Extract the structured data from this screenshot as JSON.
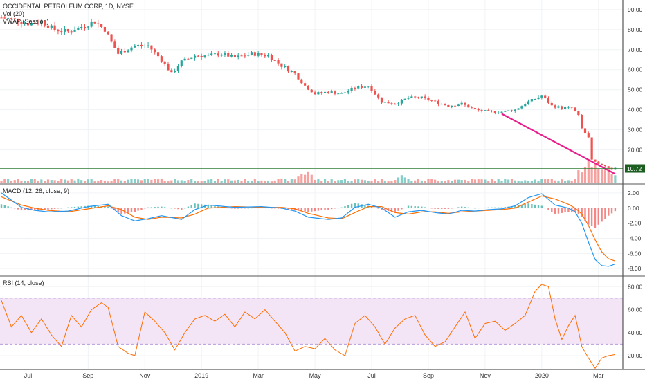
{
  "header": {
    "title": "OCCIDENTAL PETROLEUM CORP, 1D, NYSE",
    "vol_label": "Vol (20)",
    "vwap_label": "VWAP (Session)",
    "macd_label": "MACD (12, 26, close, 9)",
    "rsi_label": "RSI (14, close)",
    "last_price": "10.72"
  },
  "colors": {
    "up": "#26a69a",
    "down": "#ef5350",
    "macd_line": "#2196f3",
    "signal_line": "#ff6d00",
    "rsi_line": "#ff6d00",
    "rsi_band": "#f3e5f5",
    "trendline": "#e91e8c",
    "price_tag": "#1b5e20"
  },
  "chart_data": [
    {
      "type": "candlestick",
      "title": "OCCIDENTAL PETROLEUM CORP, 1D, NYSE",
      "x_ticks": [
        "Jul",
        "Sep",
        "Nov",
        "2019",
        "Mar",
        "May",
        "Jul",
        "Sep",
        "Nov",
        "2020",
        "Mar"
      ],
      "y_ticks": [
        90,
        80,
        70,
        60,
        50,
        40,
        30,
        20
      ],
      "ylim": [
        4,
        92
      ],
      "last_price": 10.72,
      "price_path": [
        [
          0,
          86
        ],
        [
          4,
          85
        ],
        [
          8,
          83
        ],
        [
          12,
          84
        ],
        [
          16,
          80
        ],
        [
          20,
          79
        ],
        [
          25,
          82
        ],
        [
          28,
          84
        ],
        [
          31,
          80
        ],
        [
          35,
          68
        ],
        [
          40,
          72
        ],
        [
          44,
          72
        ],
        [
          48,
          65
        ],
        [
          51,
          58
        ],
        [
          54,
          64
        ],
        [
          58,
          67
        ],
        [
          62,
          67
        ],
        [
          66,
          68
        ],
        [
          70,
          66
        ],
        [
          75,
          68
        ],
        [
          80,
          67
        ],
        [
          84,
          62
        ],
        [
          88,
          58
        ],
        [
          91,
          52
        ],
        [
          94,
          48
        ],
        [
          98,
          49
        ],
        [
          102,
          48
        ],
        [
          106,
          51
        ],
        [
          110,
          52
        ],
        [
          114,
          44
        ],
        [
          118,
          43
        ],
        [
          122,
          46
        ],
        [
          126,
          46
        ],
        [
          130,
          44
        ],
        [
          134,
          42
        ],
        [
          138,
          43
        ],
        [
          142,
          40
        ],
        [
          146,
          39
        ],
        [
          150,
          39
        ],
        [
          154,
          40
        ],
        [
          158,
          44
        ],
        [
          162,
          47
        ],
        [
          165,
          42
        ],
        [
          168,
          41
        ],
        [
          171,
          41
        ],
        [
          173,
          37
        ],
        [
          174,
          31
        ],
        [
          176,
          26
        ],
        [
          177,
          15
        ],
        [
          179,
          13
        ],
        [
          181,
          12
        ],
        [
          183,
          10.5
        ],
        [
          184,
          10.72
        ]
      ],
      "trendline": [
        [
          150,
          38
        ],
        [
          184,
          8
        ]
      ],
      "volume_peaks": [
        [
          176,
          0.9
        ],
        [
          178,
          0.75
        ],
        [
          180,
          0.55
        ],
        [
          182,
          0.45
        ],
        [
          90,
          0.35
        ],
        [
          92,
          0.45
        ],
        [
          120,
          0.3
        ]
      ]
    },
    {
      "type": "line",
      "title": "MACD (12, 26, close, 9)",
      "y_ticks": [
        2.0,
        0.0,
        -2.0,
        -4.0,
        -6.0,
        -8.0
      ],
      "ylim": [
        -8.9,
        3.0
      ],
      "series": [
        {
          "name": "MACD",
          "values": [
            [
              0,
              2.0
            ],
            [
              6,
              0.1
            ],
            [
              10,
              -0.3
            ],
            [
              14,
              -0.5
            ],
            [
              20,
              -0.4
            ],
            [
              26,
              0.2
            ],
            [
              32,
              0.5
            ],
            [
              36,
              -1.0
            ],
            [
              40,
              -1.7
            ],
            [
              44,
              -1.4
            ],
            [
              48,
              -1.0
            ],
            [
              54,
              -1.5
            ],
            [
              58,
              -0.2
            ],
            [
              62,
              0.4
            ],
            [
              70,
              0.1
            ],
            [
              78,
              0.2
            ],
            [
              84,
              0.0
            ],
            [
              88,
              -0.4
            ],
            [
              92,
              -1.2
            ],
            [
              98,
              -1.5
            ],
            [
              102,
              -1.3
            ],
            [
              106,
              0.1
            ],
            [
              110,
              0.5
            ],
            [
              114,
              0.0
            ],
            [
              118,
              -1.2
            ],
            [
              122,
              -0.5
            ],
            [
              126,
              -0.3
            ],
            [
              130,
              -0.6
            ],
            [
              134,
              -0.8
            ],
            [
              138,
              -0.3
            ],
            [
              142,
              -0.4
            ],
            [
              146,
              -0.2
            ],
            [
              150,
              -0.1
            ],
            [
              154,
              0.3
            ],
            [
              158,
              1.4
            ],
            [
              162,
              1.9
            ],
            [
              166,
              0.4
            ],
            [
              170,
              0.0
            ],
            [
              172,
              -0.5
            ],
            [
              174,
              -2.0
            ],
            [
              176,
              -4.5
            ],
            [
              178,
              -6.8
            ],
            [
              180,
              -7.6
            ],
            [
              182,
              -7.7
            ],
            [
              184,
              -7.4
            ]
          ]
        },
        {
          "name": "Signal",
          "values": [
            [
              0,
              1.5
            ],
            [
              6,
              0.4
            ],
            [
              10,
              0.0
            ],
            [
              14,
              -0.3
            ],
            [
              20,
              -0.5
            ],
            [
              26,
              -0.1
            ],
            [
              32,
              0.3
            ],
            [
              36,
              -0.2
            ],
            [
              40,
              -1.2
            ],
            [
              44,
              -1.5
            ],
            [
              48,
              -1.2
            ],
            [
              54,
              -1.3
            ],
            [
              58,
              -0.8
            ],
            [
              62,
              0.0
            ],
            [
              70,
              0.2
            ],
            [
              78,
              0.1
            ],
            [
              84,
              0.1
            ],
            [
              88,
              -0.1
            ],
            [
              92,
              -0.7
            ],
            [
              98,
              -1.3
            ],
            [
              102,
              -1.4
            ],
            [
              106,
              -0.6
            ],
            [
              110,
              0.2
            ],
            [
              114,
              0.2
            ],
            [
              118,
              -0.6
            ],
            [
              122,
              -0.8
            ],
            [
              126,
              -0.5
            ],
            [
              130,
              -0.5
            ],
            [
              134,
              -0.7
            ],
            [
              138,
              -0.5
            ],
            [
              142,
              -0.4
            ],
            [
              146,
              -0.3
            ],
            [
              150,
              -0.2
            ],
            [
              154,
              0.0
            ],
            [
              158,
              0.8
            ],
            [
              162,
              1.6
            ],
            [
              166,
              1.2
            ],
            [
              170,
              0.5
            ],
            [
              172,
              0.0
            ],
            [
              174,
              -0.8
            ],
            [
              176,
              -2.3
            ],
            [
              178,
              -4.2
            ],
            [
              180,
              -5.8
            ],
            [
              182,
              -6.7
            ],
            [
              184,
              -7.0
            ]
          ]
        }
      ]
    },
    {
      "type": "line",
      "title": "RSI (14, close)",
      "y_ticks": [
        80.0,
        60.0,
        40.0,
        20.0
      ],
      "ylim": [
        8,
        88
      ],
      "band": [
        30,
        70
      ],
      "series": [
        {
          "name": "RSI",
          "values": [
            [
              0,
              68
            ],
            [
              3,
              45
            ],
            [
              6,
              55
            ],
            [
              9,
              40
            ],
            [
              12,
              52
            ],
            [
              15,
              38
            ],
            [
              18,
              28
            ],
            [
              21,
              55
            ],
            [
              24,
              45
            ],
            [
              27,
              60
            ],
            [
              30,
              66
            ],
            [
              32,
              62
            ],
            [
              35,
              28
            ],
            [
              38,
              22
            ],
            [
              40,
              20
            ],
            [
              43,
              58
            ],
            [
              46,
              50
            ],
            [
              49,
              40
            ],
            [
              52,
              25
            ],
            [
              55,
              40
            ],
            [
              58,
              52
            ],
            [
              61,
              55
            ],
            [
              64,
              50
            ],
            [
              67,
              56
            ],
            [
              70,
              45
            ],
            [
              73,
              58
            ],
            [
              76,
              52
            ],
            [
              79,
              60
            ],
            [
              82,
              50
            ],
            [
              85,
              40
            ],
            [
              88,
              24
            ],
            [
              91,
              28
            ],
            [
              94,
              26
            ],
            [
              97,
              35
            ],
            [
              100,
              25
            ],
            [
              103,
              20
            ],
            [
              106,
              48
            ],
            [
              109,
              55
            ],
            [
              112,
              45
            ],
            [
              115,
              30
            ],
            [
              118,
              44
            ],
            [
              121,
              52
            ],
            [
              124,
              55
            ],
            [
              127,
              38
            ],
            [
              130,
              28
            ],
            [
              133,
              32
            ],
            [
              136,
              45
            ],
            [
              139,
              58
            ],
            [
              142,
              35
            ],
            [
              145,
              48
            ],
            [
              148,
              50
            ],
            [
              151,
              42
            ],
            [
              154,
              48
            ],
            [
              157,
              55
            ],
            [
              160,
              76
            ],
            [
              162,
              82
            ],
            [
              164,
              80
            ],
            [
              166,
              52
            ],
            [
              168,
              34
            ],
            [
              170,
              46
            ],
            [
              172,
              55
            ],
            [
              174,
              28
            ],
            [
              176,
              18
            ],
            [
              178,
              9
            ],
            [
              180,
              18
            ],
            [
              182,
              20
            ],
            [
              184,
              21
            ]
          ]
        }
      ]
    }
  ]
}
